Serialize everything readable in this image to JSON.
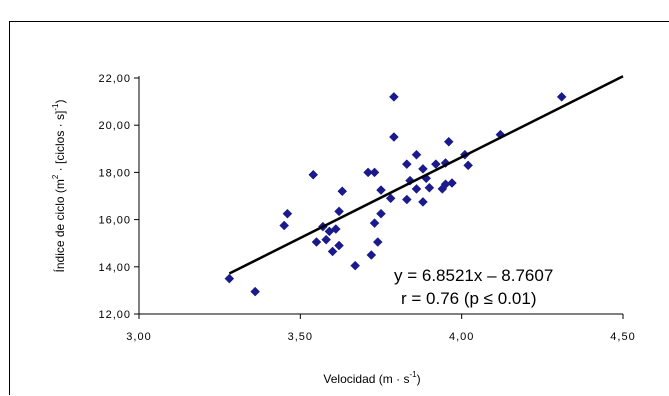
{
  "chart_data": {
    "type": "scatter",
    "xlabel_main": "Velocidad (m · s",
    "xlabel_sup": "-1",
    "xlabel_end": ")",
    "ylabel_main": "Índice de ciclo (m",
    "ylabel_sup1": "2",
    "ylabel_mid": " · [ciclos · s]",
    "ylabel_sup2": "-1",
    "ylabel_end": ")",
    "xlim": [
      3.0,
      4.5
    ],
    "ylim": [
      12.0,
      22.0
    ],
    "x_ticks": [
      3.0,
      3.5,
      4.0,
      4.5
    ],
    "x_tick_labels": [
      "3,00",
      "3,50",
      "4,00",
      "4,50"
    ],
    "y_ticks": [
      12,
      14,
      16,
      18,
      20,
      22
    ],
    "y_tick_labels": [
      "12,00",
      "14,00",
      "16,00",
      "18,00",
      "20,00",
      "22,00"
    ],
    "marker_color": "#1a1a8c",
    "line_color": "#000000",
    "regression": {
      "slope": 6.8521,
      "intercept": -8.7607,
      "x_range": [
        3.28,
        4.5
      ]
    },
    "annotation_line1": "y = 6.8521x – 8.7607",
    "annotation_line2": "r = 0.76 (p ≤ 0.01)",
    "points": [
      {
        "x": 3.28,
        "y": 13.5
      },
      {
        "x": 3.36,
        "y": 12.95
      },
      {
        "x": 3.45,
        "y": 15.75
      },
      {
        "x": 3.46,
        "y": 16.25
      },
      {
        "x": 3.54,
        "y": 17.9
      },
      {
        "x": 3.55,
        "y": 15.05
      },
      {
        "x": 3.57,
        "y": 15.7
      },
      {
        "x": 3.58,
        "y": 15.15
      },
      {
        "x": 3.59,
        "y": 15.5
      },
      {
        "x": 3.6,
        "y": 14.65
      },
      {
        "x": 3.61,
        "y": 15.6
      },
      {
        "x": 3.62,
        "y": 14.9
      },
      {
        "x": 3.62,
        "y": 16.35
      },
      {
        "x": 3.63,
        "y": 17.2
      },
      {
        "x": 3.67,
        "y": 14.05
      },
      {
        "x": 3.71,
        "y": 18.0
      },
      {
        "x": 3.72,
        "y": 14.5
      },
      {
        "x": 3.73,
        "y": 18.0
      },
      {
        "x": 3.73,
        "y": 15.85
      },
      {
        "x": 3.74,
        "y": 15.05
      },
      {
        "x": 3.75,
        "y": 16.25
      },
      {
        "x": 3.75,
        "y": 17.25
      },
      {
        "x": 3.78,
        "y": 16.9
      },
      {
        "x": 3.79,
        "y": 21.2
      },
      {
        "x": 3.79,
        "y": 19.5
      },
      {
        "x": 3.83,
        "y": 16.85
      },
      {
        "x": 3.83,
        "y": 18.35
      },
      {
        "x": 3.84,
        "y": 17.65
      },
      {
        "x": 3.86,
        "y": 18.75
      },
      {
        "x": 3.86,
        "y": 17.3
      },
      {
        "x": 3.88,
        "y": 16.75
      },
      {
        "x": 3.88,
        "y": 18.15
      },
      {
        "x": 3.89,
        "y": 17.75
      },
      {
        "x": 3.9,
        "y": 17.35
      },
      {
        "x": 3.92,
        "y": 18.35
      },
      {
        "x": 3.94,
        "y": 17.3
      },
      {
        "x": 3.95,
        "y": 17.5
      },
      {
        "x": 3.95,
        "y": 18.4
      },
      {
        "x": 3.96,
        "y": 19.3
      },
      {
        "x": 3.97,
        "y": 17.55
      },
      {
        "x": 4.01,
        "y": 18.75
      },
      {
        "x": 4.02,
        "y": 18.3
      },
      {
        "x": 4.12,
        "y": 19.6
      },
      {
        "x": 4.31,
        "y": 21.2
      }
    ]
  }
}
